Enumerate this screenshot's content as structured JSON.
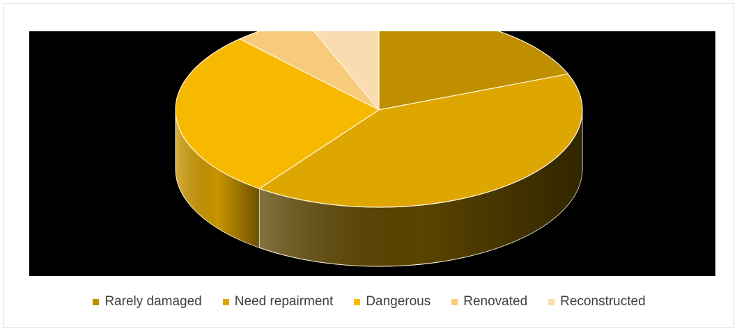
{
  "chart_data": {
    "type": "pie",
    "style": "3d",
    "categories": [
      "Rarely damaged",
      "Need repairment",
      "Dangerous",
      "Renovated",
      "Reconstructed"
    ],
    "values": [
      19,
      41,
      28,
      6,
      6
    ],
    "colors": [
      "#bf8f00",
      "#dea600",
      "#f7b900",
      "#f8cb7c",
      "#f9dcb0"
    ],
    "side_colors": [
      "#5a4400",
      "#5a4400",
      "#c79400",
      "#c7a060",
      "#c7b090"
    ],
    "background": "#000000",
    "legend_position": "bottom",
    "title": ""
  }
}
